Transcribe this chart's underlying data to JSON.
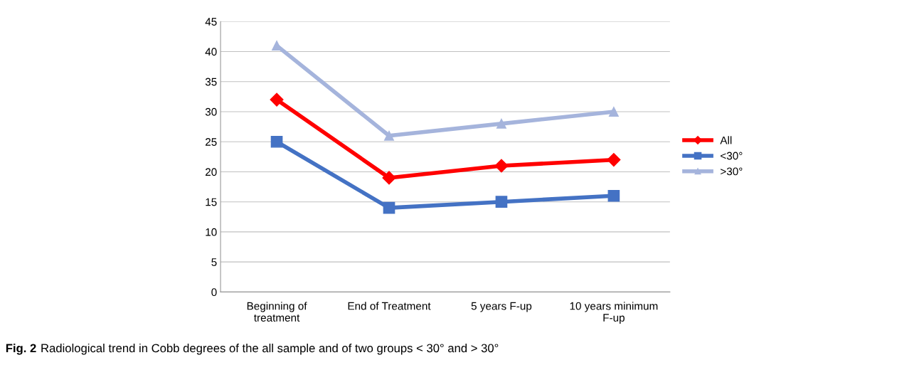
{
  "chart_data": {
    "type": "line",
    "categories": [
      "Beginning of\ntreatment",
      "End of Treatment",
      "5 years F-up",
      "10 years minimum\nF-up"
    ],
    "series": [
      {
        "name": "All",
        "color": "#ff0000",
        "marker": "diamond",
        "values": [
          32,
          19,
          21,
          22
        ]
      },
      {
        "name": "<30°",
        "color": "#4472c4",
        "marker": "square",
        "values": [
          25,
          14,
          15,
          16
        ]
      },
      {
        "name": ">30°",
        "color": "#a5b4dc",
        "marker": "triangle",
        "values": [
          41,
          26,
          28,
          30
        ]
      }
    ],
    "ylim": [
      0,
      45
    ],
    "yticks": [
      0,
      5,
      10,
      15,
      20,
      25,
      30,
      35,
      40,
      45
    ],
    "grid": "y",
    "legend": "right",
    "annotations": [
      "Fig. 2",
      "Radiological trend in Cobb degrees of the all sample and of two groups < 30° and > 30°"
    ]
  }
}
